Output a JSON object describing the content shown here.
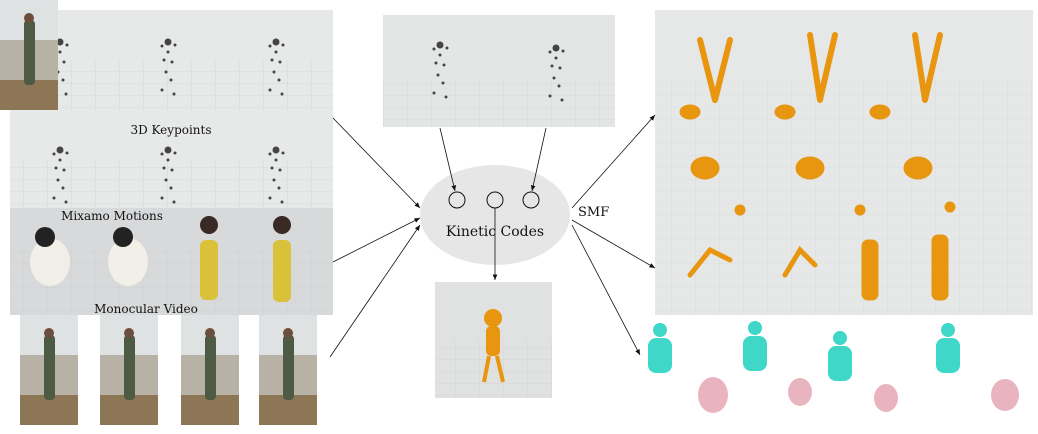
{
  "labels": {
    "keypoints": "3D Keypoints",
    "mixamo": "Mixamo Motions",
    "video": "Monocular Video",
    "kinetic_codes": "Kinetic Codes",
    "smf": "SMF"
  },
  "colors": {
    "panel_bg": "#e6e8e8",
    "ellipse": "#e5e5e5",
    "orange": "#e8960f",
    "cyan": "#3fd8c8",
    "pink": "#e9b4bf"
  }
}
